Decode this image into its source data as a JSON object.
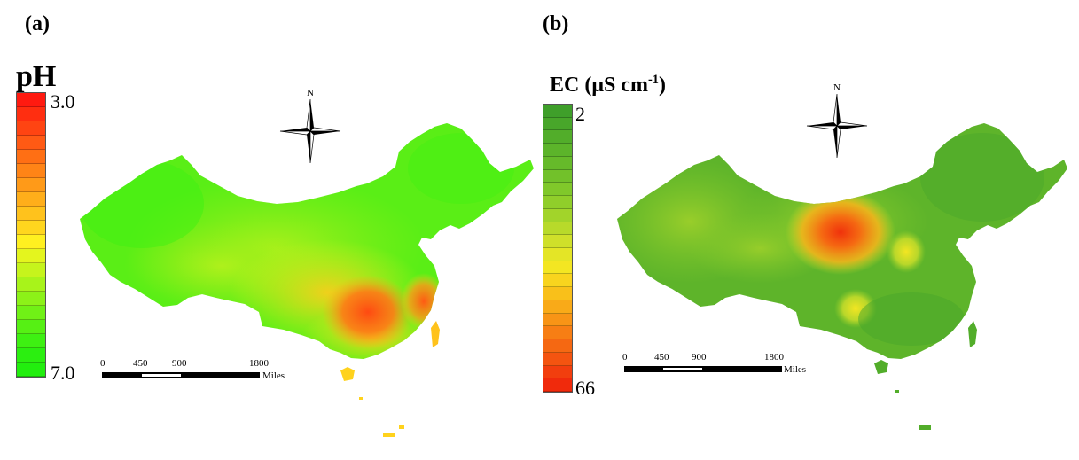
{
  "panels": [
    {
      "label": "(a)",
      "legend": {
        "title": "pH",
        "top_value": "3.0",
        "bottom_value": "7.0",
        "colors": [
          "#ff1a10",
          "#ff2e10",
          "#ff4412",
          "#ff5a14",
          "#ff6f14",
          "#ff8416",
          "#ff9a18",
          "#ffae1a",
          "#ffc21c",
          "#ffd61e",
          "#fff020",
          "#e4f51e",
          "#c6f41c",
          "#a8f31a",
          "#8cf218",
          "#70f116",
          "#56f014",
          "#3ef012",
          "#2bef10",
          "#22ee0e"
        ]
      },
      "north_label": "N",
      "scale": {
        "ticks": [
          "0",
          "450",
          "900",
          "1800"
        ],
        "unit": "Miles"
      }
    },
    {
      "label": "(b)",
      "legend": {
        "title": "EC (μS cm",
        "title_sup": "-1",
        "title_end": ")",
        "top_value": "2",
        "bottom_value": "66",
        "colors": [
          "#3f9f2a",
          "#48a62a",
          "#52ad2a",
          "#5cb42a",
          "#66ba2a",
          "#72c12a",
          "#80c82a",
          "#90ce2a",
          "#a2d42a",
          "#b8da2a",
          "#cfe02a",
          "#e4e526",
          "#f3e622",
          "#f8d41e",
          "#f9c01a",
          "#f9aa18",
          "#f89416",
          "#f77e14",
          "#f56812",
          "#f45410",
          "#f23e0e",
          "#f02a0c"
        ]
      },
      "north_label": "N",
      "scale": {
        "ticks": [
          "0",
          "450",
          "900",
          "1800"
        ],
        "unit": "Miles"
      }
    }
  ]
}
